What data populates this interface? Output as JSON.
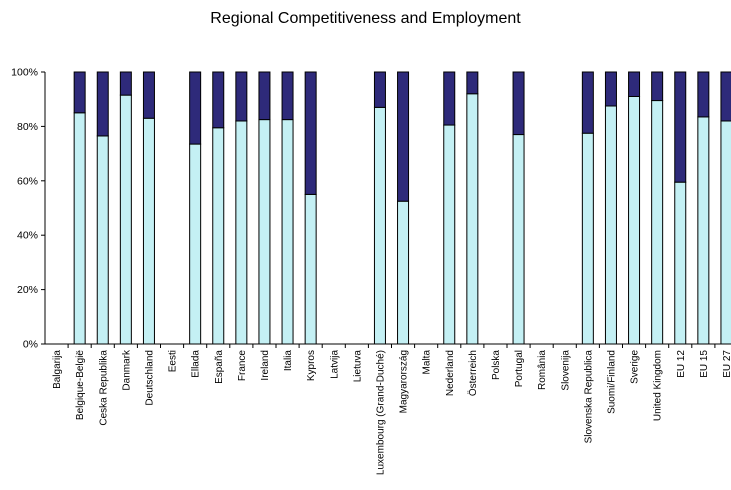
{
  "chart_data": {
    "type": "bar",
    "stacked": true,
    "percent_stacked": true,
    "title": "Regional Competitiveness and Employment",
    "xlabel": "",
    "ylabel": "",
    "ylim": [
      0,
      100
    ],
    "yticks": [
      "0%",
      "20%",
      "40%",
      "60%",
      "80%",
      "100%"
    ],
    "grid": false,
    "legend": "none",
    "categories": [
      "Balgarija",
      "Belgique-België",
      "Ceska Republika",
      "Danmark",
      "Deutschland",
      "Eesti",
      "Ellada",
      "España",
      "France",
      "Ireland",
      "Italia",
      "Kypros",
      "Latvija",
      "Lietuva",
      "Luxembourg (Grand-Duché)",
      "Magyarország",
      "Malta",
      "Nederland",
      "Österreich",
      "Polska",
      "Portugal",
      "România",
      "Slovenija",
      "Slovenska Republica",
      "Suomi/Finland",
      "Sverige",
      "United Kingdom",
      "EU 12",
      "EU 15",
      "EU 27"
    ],
    "series": [
      {
        "color": "#c4f0f4",
        "values": [
          null,
          85,
          76.5,
          91.5,
          83,
          null,
          73.5,
          79.5,
          82,
          82.5,
          82.5,
          55,
          null,
          null,
          87,
          52.5,
          null,
          80.5,
          92,
          null,
          77,
          null,
          null,
          77.5,
          87.5,
          91,
          89.5,
          59.5,
          83.5,
          82
        ]
      },
      {
        "color": "#2e2a7a",
        "values": [
          null,
          15,
          23.5,
          8.5,
          17,
          null,
          26.5,
          20.5,
          18,
          17.5,
          17.5,
          45,
          null,
          null,
          13,
          47.5,
          null,
          19.5,
          8,
          null,
          23,
          null,
          null,
          22.5,
          12.5,
          9,
          10.5,
          40.5,
          16.5,
          18
        ]
      }
    ]
  }
}
